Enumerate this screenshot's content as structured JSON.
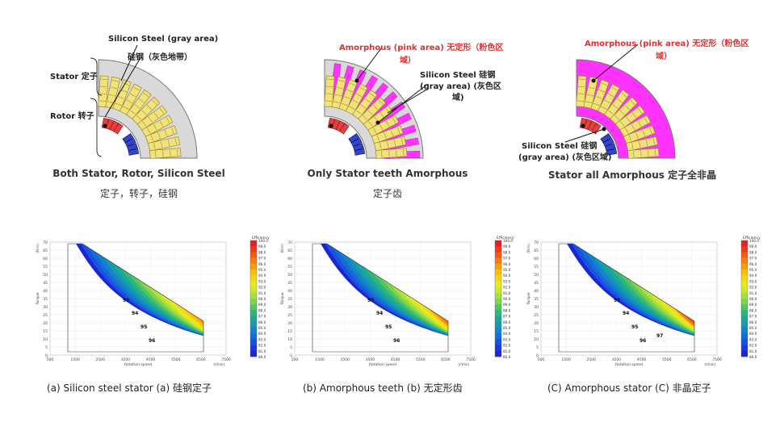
{
  "panels": [
    {
      "callouts": [
        "Silicon Steel (gray area)",
        "硅钢（灰色地带）",
        "Stator 定子",
        "Rotor 转子"
      ],
      "caption": "Both Stator, Rotor, Silicon Steel",
      "caption_cn": "定子，转子，硅钢"
    },
    {
      "callouts": [
        "Amorphous (pink area) 无定形（粉色区",
        "域）",
        "Silicon Steel 硅钢",
        "(gray area) (灰色区",
        "域)"
      ],
      "caption": "Only Stator teeth Amorphous",
      "caption_cn": "定子齿"
    },
    {
      "callouts": [
        "Amorphous (pink area) 无定形（粉色区",
        "域）",
        "Silicon Steel 硅钢",
        "(gray area) (灰色区域)"
      ],
      "caption": "Stator all Amorphous 定子全非晶",
      "caption_cn": ""
    }
  ],
  "colors": {
    "silicon": "#d9d9d9",
    "amorphous": "#ff33ff",
    "magnet_red": "#e04040",
    "magnet_blue": "#3344cc",
    "coil": "#f2e27a"
  },
  "maps": [
    {
      "caption": "(a) Silicon steel stator (a) 硅钢定子",
      "contour_labels": [
        "93",
        "94",
        "95",
        "96"
      ]
    },
    {
      "caption": "(b) Amorphous teeth (b) 无定形齿",
      "contour_labels": [
        "93",
        "94",
        "95",
        "96"
      ]
    },
    {
      "caption": "(C) Amorphous stator (C) 非晶定子",
      "contour_labels": [
        "93",
        "94",
        "95",
        "96",
        "97"
      ]
    }
  ],
  "axes": {
    "ylabel": "Torque",
    "yunit": "(N·m)",
    "xlabel": "Rotation speed",
    "xunit": "(r/min)",
    "yticks": [
      "70",
      "65",
      "60",
      "55",
      "50",
      "45",
      "40",
      "35",
      "30",
      "25",
      "20",
      "15",
      "10",
      "5",
      "0"
    ],
    "xticks": [
      "500",
      "1500",
      "2500",
      "3500",
      "4500",
      "5500",
      "6500",
      "7500"
    ]
  },
  "legend": {
    "title": "Efficiency",
    "ticks": [
      "100.0",
      "99.0",
      "98.0",
      "97.0",
      "96.0",
      "95.0",
      "94.0",
      "93.0",
      "92.0",
      "91.0",
      "90.0",
      "89.0",
      "88.0",
      "87.0",
      "86.0",
      "85.0",
      "84.0",
      "83.0",
      "82.0",
      "81.0",
      "80.0"
    ],
    "colors": [
      "#e62020",
      "#ee3a1a",
      "#f45a14",
      "#f77d10",
      "#f99e0c",
      "#fbbd0a",
      "#f8d514",
      "#ece81e",
      "#cce92c",
      "#a8e03c",
      "#7fd34e",
      "#52c462",
      "#2fb67a",
      "#1ba896",
      "#159ab2",
      "#1484c8",
      "#156cd8",
      "#1852df",
      "#1a3adf",
      "#1b25d4"
    ]
  }
}
